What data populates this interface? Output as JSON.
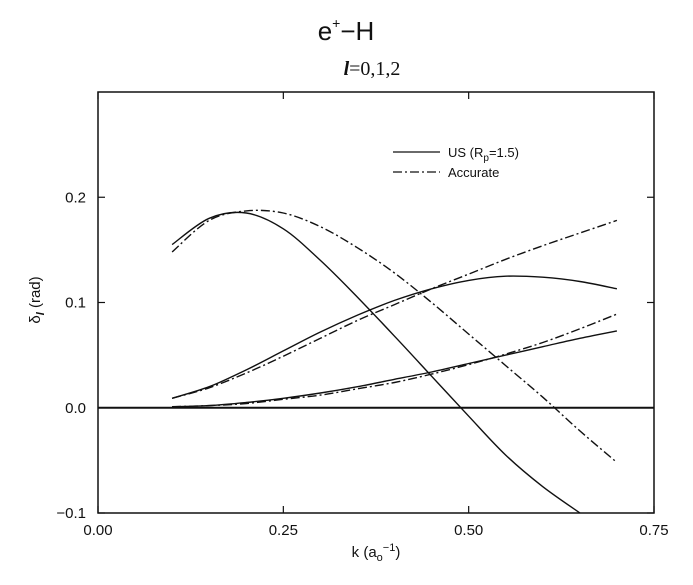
{
  "chart_data": {
    "type": "line",
    "title_main": "e",
    "title_sup": "+",
    "title_rest": "−H",
    "subtitle_l": "l",
    "subtitle_rest": "=0,1,2",
    "xlabel_main": "k (a",
    "xlabel_sub": "o",
    "xlabel_sup": "−1",
    "xlabel_close": ")",
    "ylabel_main": "δ",
    "ylabel_sub": "l",
    "ylabel_rest": " (rad)",
    "xlim": [
      0.0,
      0.75
    ],
    "ylim": [
      -0.1,
      0.3
    ],
    "xticks": [
      0.0,
      0.25,
      0.5,
      0.75
    ],
    "xtick_labels": [
      "0.00",
      "0.25",
      "0.50",
      "0.75"
    ],
    "yticks": [
      -0.1,
      0.0,
      0.1,
      0.2
    ],
    "ytick_labels": [
      "−0.1",
      "0.0",
      "0.1",
      "0.2"
    ],
    "legend_position": "top-right",
    "legend": [
      {
        "label_main": "US (R",
        "label_sub": "p",
        "label_rest": "=1.5)",
        "style": "solid"
      },
      {
        "label_main": "Accurate",
        "label_sub": "",
        "label_rest": "",
        "style": "dashdot"
      }
    ],
    "series": [
      {
        "group": "US",
        "l": 0,
        "style": "solid",
        "x": [
          0.1,
          0.15,
          0.2,
          0.25,
          0.3,
          0.35,
          0.4,
          0.45,
          0.5,
          0.55,
          0.6,
          0.65
        ],
        "y": [
          0.155,
          0.18,
          0.185,
          0.17,
          0.14,
          0.105,
          0.068,
          0.03,
          -0.008,
          -0.045,
          -0.075,
          -0.1
        ]
      },
      {
        "group": "Accurate",
        "l": 0,
        "style": "dashdot",
        "x": [
          0.1,
          0.15,
          0.2,
          0.25,
          0.3,
          0.35,
          0.4,
          0.45,
          0.5,
          0.55,
          0.6,
          0.65,
          0.7
        ],
        "y": [
          0.148,
          0.178,
          0.187,
          0.185,
          0.172,
          0.152,
          0.128,
          0.1,
          0.07,
          0.04,
          0.01,
          -0.022,
          -0.052
        ]
      },
      {
        "group": "US",
        "l": 1,
        "style": "solid",
        "x": [
          0.1,
          0.15,
          0.2,
          0.25,
          0.3,
          0.35,
          0.4,
          0.45,
          0.5,
          0.55,
          0.6,
          0.65,
          0.7
        ],
        "y": [
          0.009,
          0.02,
          0.036,
          0.054,
          0.072,
          0.088,
          0.102,
          0.113,
          0.121,
          0.125,
          0.124,
          0.12,
          0.113
        ]
      },
      {
        "group": "Accurate",
        "l": 1,
        "style": "dashdot",
        "x": [
          0.1,
          0.15,
          0.2,
          0.25,
          0.3,
          0.35,
          0.4,
          0.45,
          0.5,
          0.55,
          0.6,
          0.65,
          0.7
        ],
        "y": [
          0.009,
          0.019,
          0.033,
          0.049,
          0.066,
          0.083,
          0.098,
          0.113,
          0.127,
          0.141,
          0.154,
          0.166,
          0.178
        ]
      },
      {
        "group": "US",
        "l": 2,
        "style": "solid",
        "x": [
          0.1,
          0.15,
          0.2,
          0.25,
          0.3,
          0.35,
          0.4,
          0.45,
          0.5,
          0.55,
          0.6,
          0.65,
          0.7
        ],
        "y": [
          0.001,
          0.002,
          0.005,
          0.009,
          0.014,
          0.02,
          0.027,
          0.034,
          0.042,
          0.05,
          0.058,
          0.066,
          0.073
        ]
      },
      {
        "group": "Accurate",
        "l": 2,
        "style": "dashdot",
        "x": [
          0.1,
          0.15,
          0.2,
          0.25,
          0.3,
          0.35,
          0.4,
          0.45,
          0.5,
          0.55,
          0.6,
          0.65,
          0.7
        ],
        "y": [
          0.001,
          0.002,
          0.004,
          0.008,
          0.012,
          0.018,
          0.024,
          0.032,
          0.041,
          0.051,
          0.062,
          0.075,
          0.089
        ]
      }
    ]
  }
}
